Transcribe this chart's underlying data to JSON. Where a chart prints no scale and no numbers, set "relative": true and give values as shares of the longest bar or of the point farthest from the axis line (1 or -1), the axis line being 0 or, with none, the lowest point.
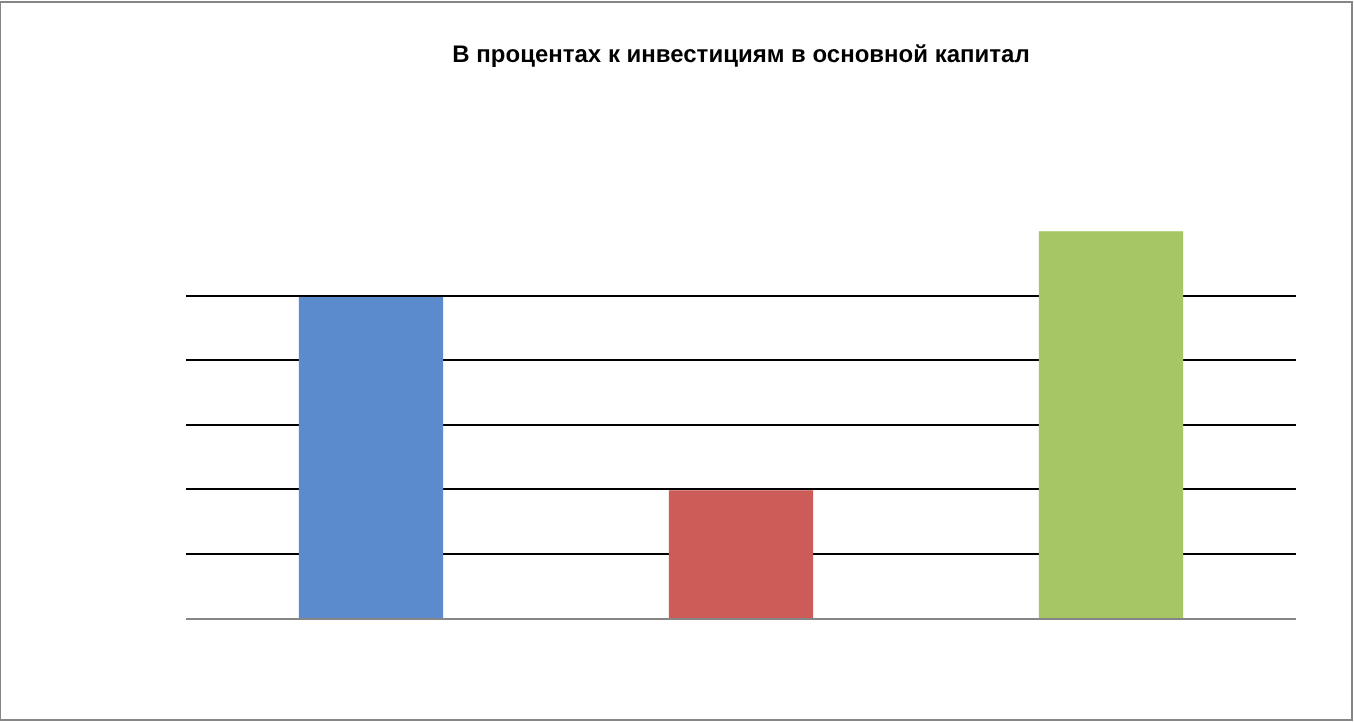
{
  "chart_data": {
    "type": "bar",
    "title": "В процентах к инвестициям в основной капитал",
    "categories": [
      null,
      null,
      null
    ],
    "values": [
      0.83,
      0.33,
      1
    ],
    "colors": [
      "#5b8bcd",
      "#cd5b57",
      "#a6c565"
    ],
    "relative": true,
    "grid": "y"
  }
}
